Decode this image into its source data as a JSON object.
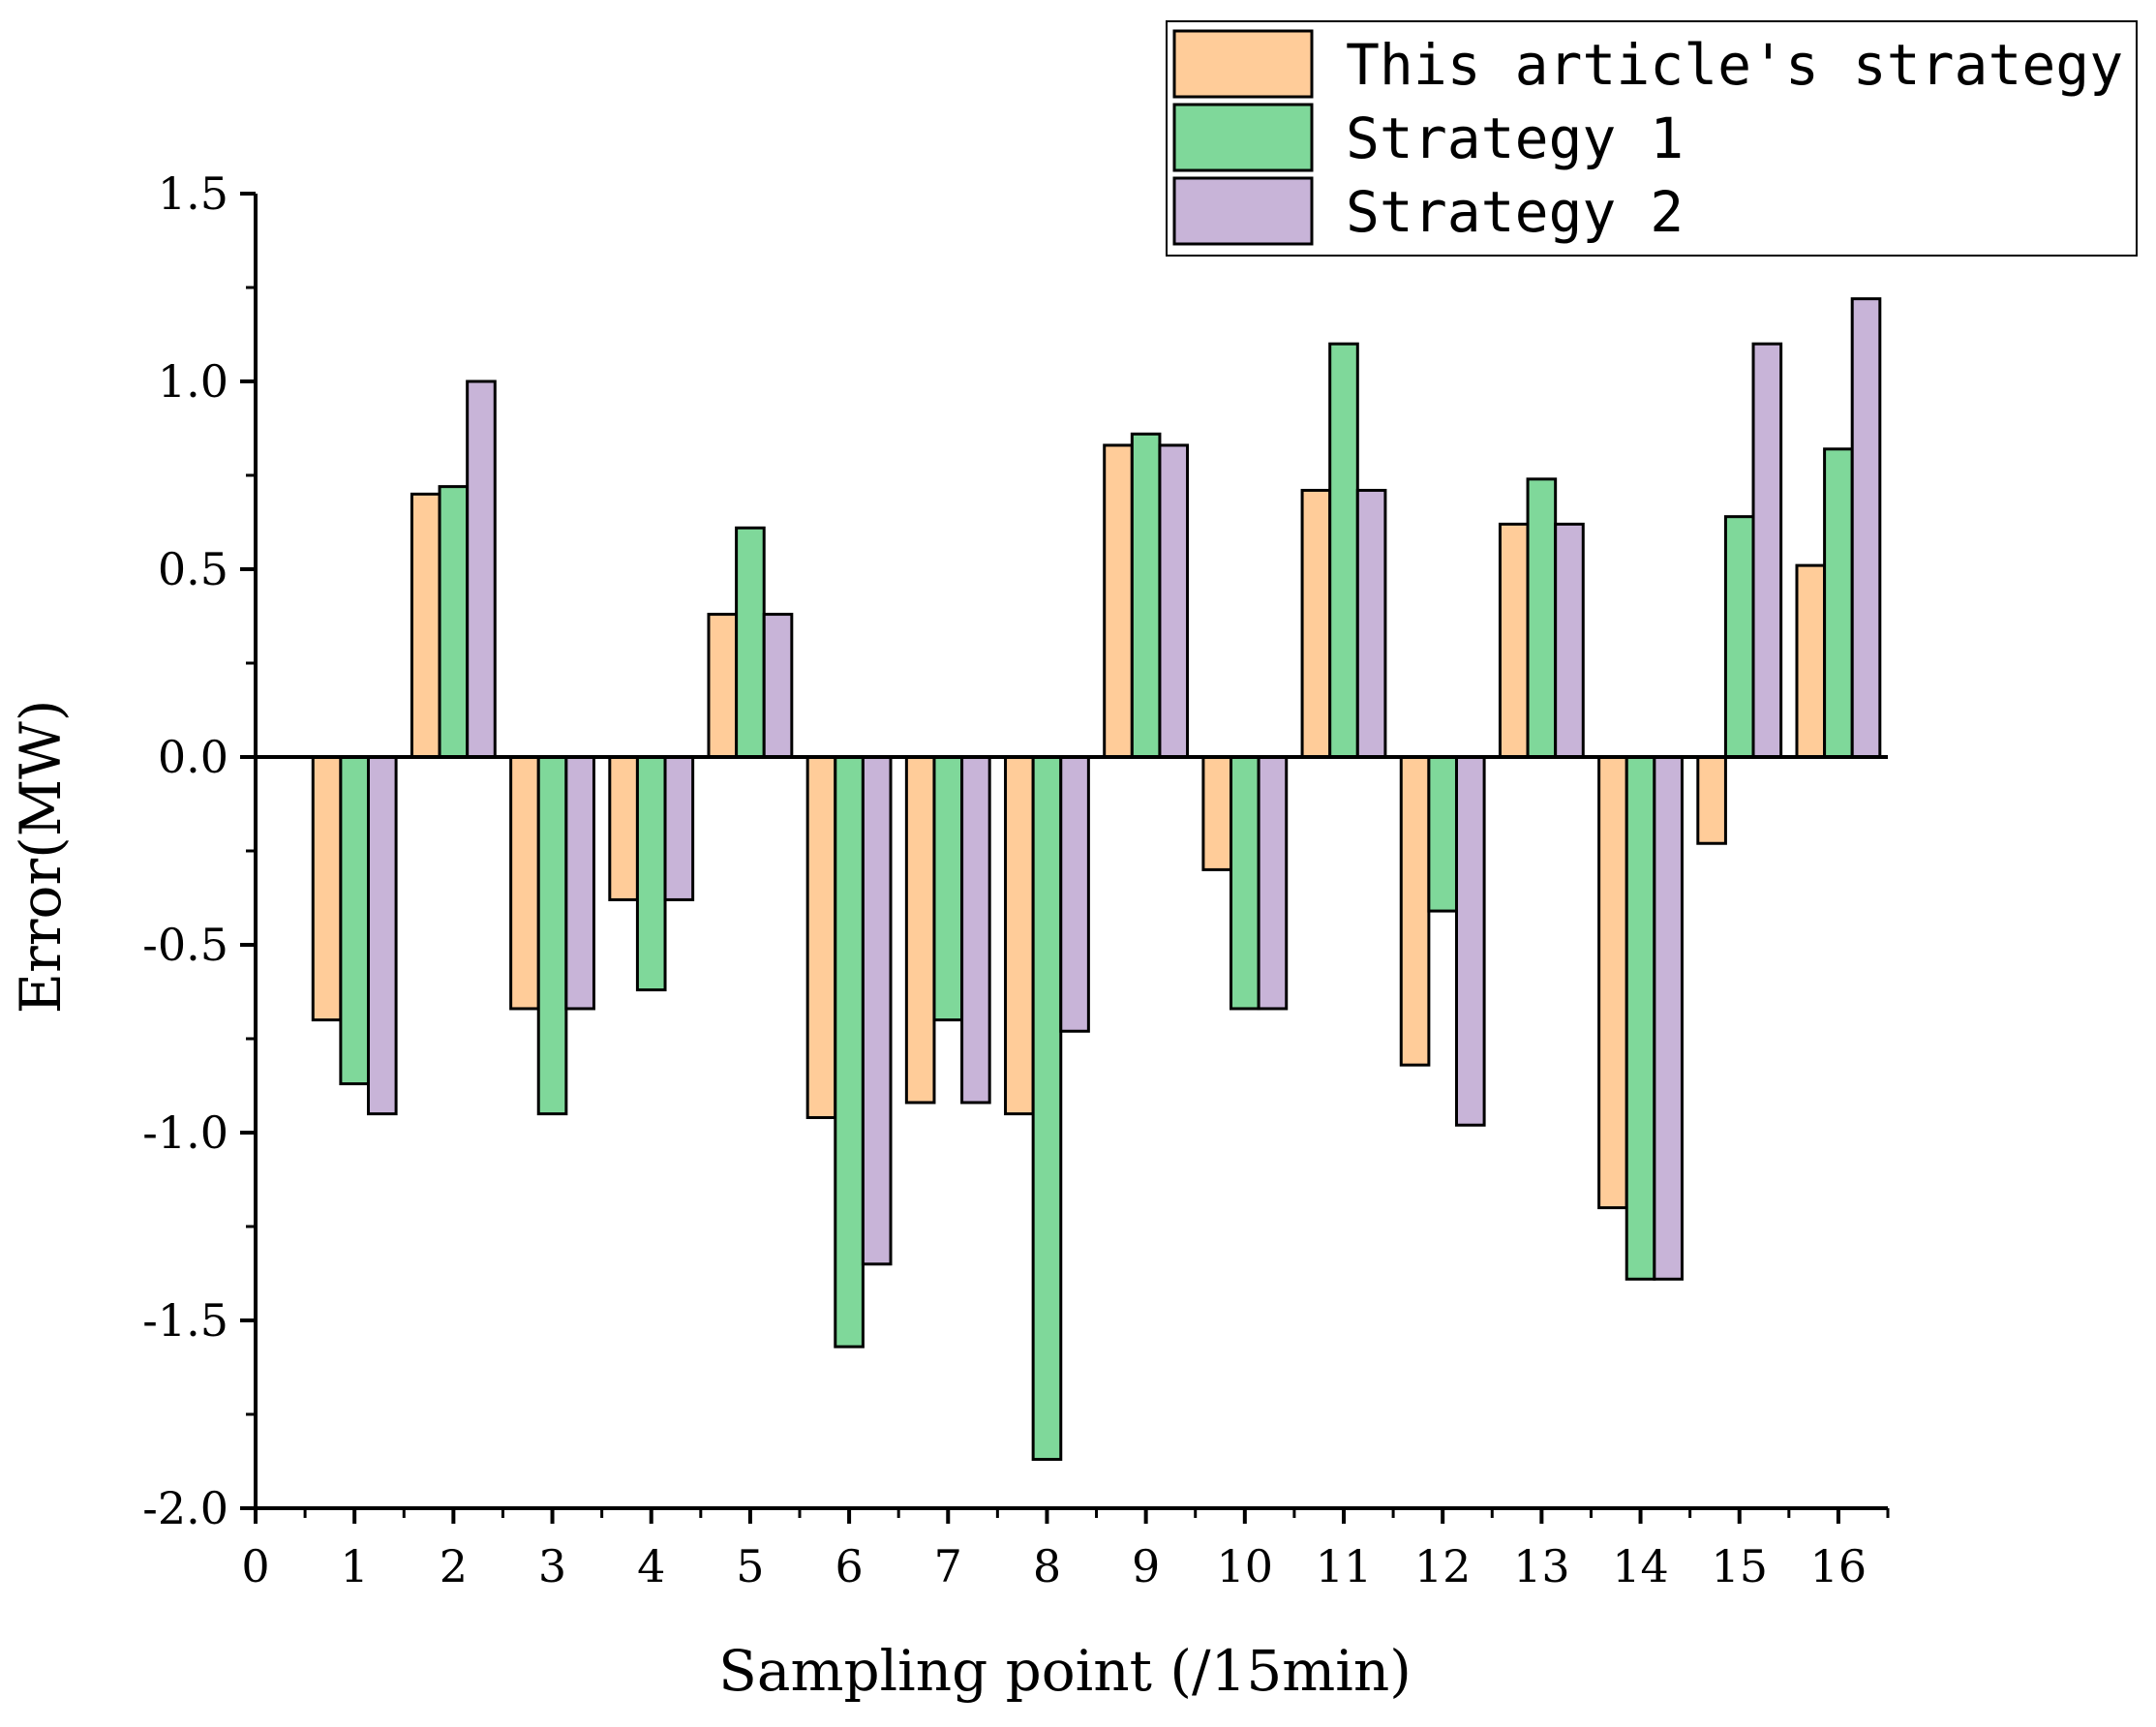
{
  "chart_data": {
    "type": "bar",
    "xlabel": "Sampling point (/15min)",
    "ylabel": "Error(MW)",
    "xlim": [
      0,
      16.5
    ],
    "ylim": [
      -2.0,
      1.5
    ],
    "x_ticks": [
      "0",
      "1",
      "2",
      "3",
      "4",
      "5",
      "6",
      "7",
      "8",
      "9",
      "10",
      "11",
      "12",
      "13",
      "14",
      "15",
      "16"
    ],
    "y_ticks": [
      "1.5",
      "1.0",
      "0.5",
      "0.0",
      "-0.5",
      "-1.0",
      "-1.5",
      "-2.0"
    ],
    "y_tick_values": [
      1.5,
      1.0,
      0.5,
      0.0,
      -0.5,
      -1.0,
      -1.5,
      -2.0
    ],
    "categories": [
      1,
      2,
      3,
      4,
      5,
      6,
      7,
      8,
      9,
      10,
      11,
      12,
      13,
      14,
      15,
      16
    ],
    "legend_position": "top-right",
    "grid": false,
    "series": [
      {
        "name": "This article's strategy",
        "color": "#FFCC99",
        "values": [
          -0.7,
          0.7,
          -0.67,
          -0.38,
          0.38,
          -0.96,
          -0.92,
          -0.95,
          0.83,
          -0.3,
          0.71,
          -0.82,
          0.62,
          -1.2,
          -0.23,
          0.51
        ]
      },
      {
        "name": "Strategy 1",
        "color": "#7FD89A",
        "values": [
          -0.87,
          0.72,
          -0.95,
          -0.62,
          0.61,
          -1.57,
          -0.7,
          -1.87,
          0.86,
          -0.67,
          1.1,
          -0.41,
          0.74,
          -1.39,
          0.64,
          0.82
        ]
      },
      {
        "name": "Strategy 2",
        "color": "#C8B4D8",
        "values": [
          -0.95,
          1.0,
          -0.67,
          -0.38,
          0.38,
          -1.35,
          -0.92,
          -0.73,
          0.83,
          -0.67,
          0.71,
          -0.98,
          0.62,
          -1.39,
          1.1,
          1.22
        ]
      }
    ]
  }
}
